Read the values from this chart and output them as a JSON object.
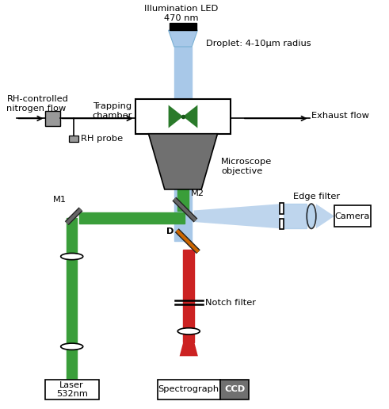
{
  "fig_width": 4.91,
  "fig_height": 5.16,
  "dpi": 100,
  "background": "#ffffff",
  "colors": {
    "green": "#3a9e3a",
    "blue_light": "#a8c8e8",
    "blue_beam": "#7ab0d4",
    "red": "#cc2222",
    "gray_dark": "#707070",
    "gray_medium": "#999999",
    "black": "#000000",
    "white": "#ffffff",
    "green_dark": "#2a7a2a",
    "blue_led": "#b0ccee"
  },
  "labels": {
    "illumination": "Illumination LED\n470 nm",
    "trapping": "Trapping\nchamber",
    "droplet": "Droplet: 4-10μm radius",
    "rh_flow": "RH-controlled\nnitrogen flow",
    "rh_probe": "RH probe",
    "exhaust": "Exhaust flow",
    "microscope": "Microscope\nobjective",
    "m1": "M1",
    "m2": "M2",
    "d": "D",
    "edge_filter": "Edge filter",
    "camera": "Camera",
    "notch_filter": "Notch filter",
    "laser": "Laser\n532nm",
    "spectrograph": "Spectrograph",
    "ccd": "CCD"
  }
}
